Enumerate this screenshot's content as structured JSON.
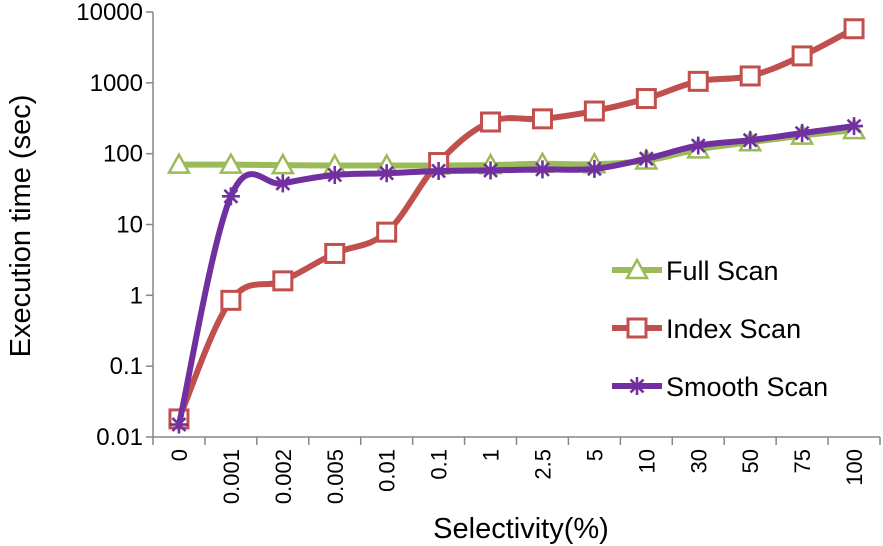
{
  "chart_data": {
    "type": "line",
    "xlabel": "Selectivity(%)",
    "ylabel": "Execution time (sec)",
    "yscale": "log",
    "ylim": [
      0.01,
      10000
    ],
    "yticks": [
      0.01,
      0.1,
      1,
      10,
      100,
      1000,
      10000
    ],
    "ytick_labels": [
      "0.01",
      "0.1",
      "1",
      "10",
      "100",
      "1000",
      "10000"
    ],
    "categories": [
      "0",
      "0.001",
      "0.002",
      "0.005",
      "0.01",
      "0.1",
      "1",
      "2.5",
      "5",
      "10",
      "30",
      "50",
      "75",
      "100"
    ],
    "grid": false,
    "legend_position": "right",
    "series": [
      {
        "name": "Full Scan",
        "color": "#9bbb59",
        "marker": "triangle-open",
        "values": [
          70,
          70,
          69,
          68,
          68,
          68,
          69,
          72,
          71,
          80,
          115,
          145,
          180,
          215
        ]
      },
      {
        "name": "Index Scan",
        "color": "#c0504d",
        "marker": "square-open",
        "values": [
          0.018,
          0.85,
          1.6,
          3.9,
          7.8,
          75,
          280,
          310,
          400,
          600,
          1050,
          1250,
          2400,
          5800
        ]
      },
      {
        "name": "Smooth Scan",
        "color": "#7030a0",
        "marker": "asterisk",
        "values": [
          0.015,
          25,
          38,
          50,
          53,
          57,
          58,
          60,
          61,
          85,
          130,
          155,
          195,
          245
        ]
      }
    ]
  }
}
